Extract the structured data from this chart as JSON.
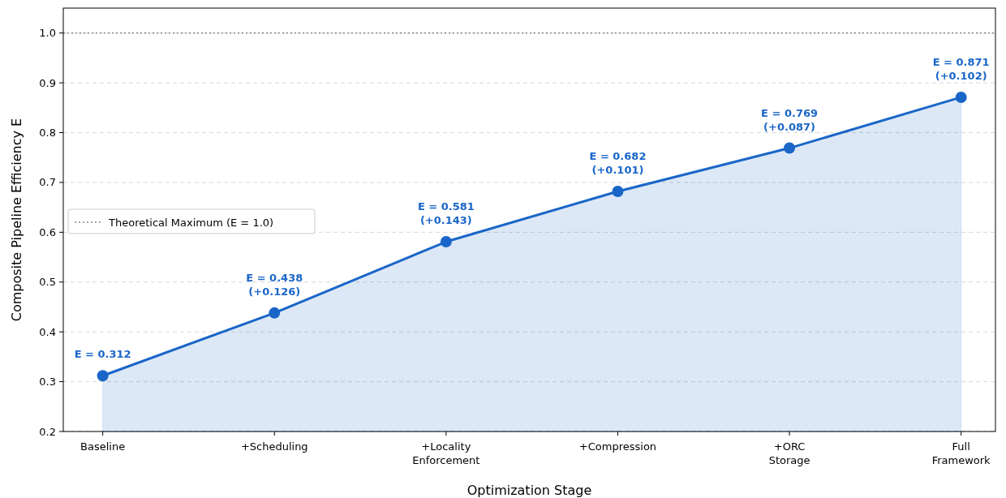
{
  "chart_data": {
    "type": "area",
    "xlabel": "Optimization Stage",
    "ylabel": "Composite Pipeline Efficiency E",
    "categories": [
      "Baseline",
      "+Scheduling",
      "+Locality\nEnforcement",
      "+Compression",
      "+ORC\nStorage",
      "Full\nFramework"
    ],
    "series": [
      {
        "color": "#1a66c8",
        "values": [
          0.312,
          0.438,
          0.581,
          0.682,
          0.769,
          0.871
        ],
        "value_labels": [
          "E = 0.312",
          "E = 0.438\n(+0.126)",
          "E = 0.581\n(+0.143)",
          "E = 0.682\n(+0.101)",
          "E = 0.769\n(+0.087)",
          "E = 0.871\n(+0.102)"
        ]
      }
    ],
    "ylim": [
      0.2,
      1.05
    ],
    "yticks": [
      {
        "value": 0.2,
        "label": "0.2"
      },
      {
        "value": 0.3,
        "label": "0.3"
      },
      {
        "value": 0.4,
        "label": "0.4"
      },
      {
        "value": 0.5,
        "label": "0.5"
      },
      {
        "value": 0.6,
        "label": "0.6"
      },
      {
        "value": 0.7,
        "label": "0.7"
      },
      {
        "value": 0.8,
        "label": "0.8"
      },
      {
        "value": 0.9,
        "label": "0.9"
      },
      {
        "value": 1.0,
        "label": "1.0"
      }
    ],
    "grid": "y",
    "marker": "circle",
    "line_style": "solid",
    "legend": "left",
    "ref_lines": [
      {
        "axis": "y",
        "value": 1.0,
        "label": "Theoretical Maximum (E = 1.0)",
        "color": "#888888",
        "line_style": "dotted"
      }
    ]
  }
}
